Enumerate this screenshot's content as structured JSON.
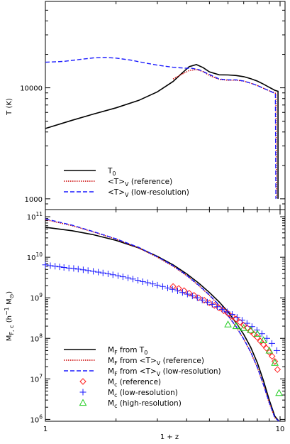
{
  "chart_data": [
    {
      "type": "line",
      "panel": "top",
      "title": "",
      "xlabel": "",
      "ylabel": "T (K)",
      "xscale": "log",
      "yscale": "log",
      "xlim": [
        1,
        10.5
      ],
      "ylim": [
        800,
        60000
      ],
      "ytick_labels": [
        "1000",
        "10000"
      ],
      "legend_placement": "bottom-left",
      "series": [
        {
          "name": "T0",
          "style": "solid",
          "color": "#000000",
          "x": [
            1.0,
            1.3,
            1.6,
            2.0,
            2.5,
            3.0,
            3.5,
            3.8,
            4.1,
            4.4,
            4.7,
            5.0,
            5.5,
            6.0,
            6.5,
            7.0,
            7.5,
            8.0,
            8.5,
            9.0,
            9.5,
            9.8,
            9.8
          ],
          "y": [
            4300,
            5100,
            5800,
            6600,
            7700,
            9200,
            11400,
            13400,
            15500,
            16200,
            15200,
            13900,
            13100,
            13050,
            12900,
            12600,
            12100,
            11500,
            10800,
            10100,
            9500,
            9300,
            1000
          ]
        },
        {
          "name": "<T>V (reference)",
          "style": "dotted",
          "color": "#cc0000",
          "x": [
            3.5,
            3.8,
            4.1,
            4.4,
            4.7,
            5.0,
            5.5,
            6.0,
            6.5,
            7.0,
            7.5,
            8.0,
            8.5,
            9.0,
            9.4,
            9.6,
            9.65
          ],
          "y": [
            12000,
            13200,
            14300,
            14600,
            14000,
            12900,
            11900,
            11700,
            11700,
            11500,
            11000,
            10500,
            9900,
            9400,
            9100,
            8900,
            1000
          ]
        },
        {
          "name": "<T>V (low-resolution)",
          "style": "dashed",
          "color": "#1a1aff",
          "x": [
            1.0,
            1.2,
            1.4,
            1.6,
            1.8,
            2.0,
            2.3,
            2.6,
            3.0,
            3.5,
            4.0,
            4.2,
            4.5,
            5.0,
            5.5,
            6.0,
            6.5,
            7.0,
            7.5,
            8.0,
            8.5,
            9.0,
            9.4,
            9.55,
            9.6
          ],
          "y": [
            17000,
            17300,
            18000,
            18600,
            18800,
            18500,
            17800,
            16900,
            16000,
            15300,
            15000,
            15000,
            14600,
            13200,
            12000,
            11800,
            11800,
            11500,
            11000,
            10500,
            9900,
            9400,
            9000,
            8900,
            1000
          ]
        }
      ]
    },
    {
      "type": "scatter",
      "panel": "bottom",
      "title": "",
      "xlabel": "1 + z",
      "ylabel": "MF, c (h−1 M⊙)",
      "xscale": "log",
      "yscale": "log",
      "xlim": [
        1,
        10.5
      ],
      "ylim": [
        900000,
        150000000000
      ],
      "xtick_labels": [
        "1",
        "10"
      ],
      "ytick_labels": [
        "10^6",
        "10^7",
        "10^8",
        "10^9",
        "10^10",
        "10^11"
      ],
      "legend_placement": "bottom-left",
      "series": [
        {
          "name": "MF from T0",
          "style": "solid",
          "color": "#000000",
          "x": [
            1.0,
            1.3,
            1.6,
            2.0,
            2.5,
            3.0,
            3.5,
            4.0,
            4.5,
            5.0,
            5.5,
            6.0,
            6.5,
            7.0,
            7.5,
            8.0,
            8.5,
            9.0,
            9.5,
            9.9
          ],
          "y": [
            55000000000,
            45000000000,
            36000000000,
            26000000000,
            17000000000,
            10500000000,
            6500000000,
            3900000000,
            2300000000,
            1350000000,
            790000000,
            450000000,
            240000000,
            125000000,
            60000000,
            25000000,
            9000000,
            3000000,
            1200000,
            900000
          ]
        },
        {
          "name": "MF from <T>V (reference)",
          "style": "dotted",
          "color": "#cc0000",
          "x": [
            1.0,
            1.3,
            1.6,
            2.0,
            2.5,
            3.0,
            3.5,
            4.0,
            4.5,
            5.0,
            5.5,
            6.0,
            6.5,
            7.0,
            7.5,
            8.0,
            8.5,
            9.0,
            9.5,
            9.9
          ],
          "y": [
            85000000000,
            60000000000,
            42000000000,
            28000000000,
            17000000000,
            10000000000,
            6000000000,
            3500000000,
            2000000000,
            1150000000,
            650000000,
            360000000,
            190000000,
            95000000,
            45000000,
            19000000,
            7000000,
            2500000,
            1100000,
            900000
          ]
        },
        {
          "name": "MF from <T>V (low-resolution)",
          "style": "dashed",
          "color": "#1a1aff",
          "x": [
            1.0,
            1.3,
            1.6,
            2.0,
            2.5,
            3.0,
            3.5,
            4.0,
            4.5,
            5.0,
            5.5,
            6.0,
            6.5,
            7.0,
            7.5,
            8.0,
            8.5,
            9.0,
            9.5,
            9.9
          ],
          "y": [
            88000000000,
            62000000000,
            43000000000,
            28500000000,
            17500000000,
            10300000000,
            6200000000,
            3600000000,
            2050000000,
            1180000000,
            660000000,
            365000000,
            195000000,
            97000000,
            46000000,
            19500000,
            7200000,
            2600000,
            1100000,
            900000
          ]
        },
        {
          "name": "Mc (reference)",
          "marker": "diamond",
          "color": "#ff2020",
          "x": [
            3.5,
            3.7,
            3.9,
            4.1,
            4.3,
            4.5,
            4.75,
            5.0,
            5.25,
            5.5,
            5.75,
            6.0,
            6.25,
            6.5,
            6.75,
            7.0,
            7.25,
            7.5,
            7.75,
            8.0,
            8.25,
            8.5,
            8.75,
            9.0,
            9.25,
            9.5,
            9.75
          ],
          "y": [
            1900000000,
            1700000000,
            1500000000,
            1300000000,
            1150000000,
            1000000000,
            870000000,
            750000000,
            650000000,
            560000000,
            480000000,
            410000000,
            350000000,
            300000000,
            250000000,
            210000000,
            180000000,
            150000000,
            125000000,
            105000000,
            85000000,
            70000000,
            57000000,
            45000000,
            36000000,
            27000000,
            17000000
          ]
        },
        {
          "name": "Mc (low-resolution)",
          "marker": "plus",
          "color": "#1a1aff",
          "x": [
            1.0,
            1.05,
            1.1,
            1.15,
            1.2,
            1.26,
            1.32,
            1.38,
            1.45,
            1.52,
            1.6,
            1.68,
            1.76,
            1.85,
            1.94,
            2.04,
            2.14,
            2.25,
            2.36,
            2.48,
            2.6,
            2.73,
            2.87,
            3.0,
            3.16,
            3.32,
            3.48,
            3.66,
            3.84,
            4.03,
            4.23,
            4.44,
            4.66,
            4.9,
            5.14,
            5.4,
            5.67,
            5.95,
            6.25,
            6.56,
            6.89,
            7.23,
            7.59,
            7.97,
            8.37,
            8.79,
            9.23,
            9.69
          ],
          "y": [
            6500000000,
            6200000000,
            6000000000,
            5800000000,
            5600000000,
            5400000000,
            5300000000,
            5100000000,
            4900000000,
            4700000000,
            4500000000,
            4300000000,
            4100000000,
            3900000000,
            3700000000,
            3500000000,
            3300000000,
            3100000000,
            2900000000,
            2700000000,
            2500000000,
            2350000000,
            2200000000,
            2050000000,
            1900000000,
            1750000000,
            1620000000,
            1480000000,
            1350000000,
            1230000000,
            1110000000,
            1000000000,
            880000000,
            780000000,
            690000000,
            600000000,
            520000000,
            450000000,
            390000000,
            330000000,
            280000000,
            235000000,
            195000000,
            160000000,
            130000000,
            100000000,
            75000000,
            50000000
          ]
        },
        {
          "name": "Mc (high-resolution)",
          "marker": "triangle",
          "color": "#22cc22",
          "x": [
            6.0,
            6.5,
            7.0,
            7.5,
            8.0,
            8.5,
            9.0,
            9.5,
            9.9
          ],
          "y": [
            220000000,
            200000000,
            180000000,
            160000000,
            130000000,
            90000000,
            50000000,
            25000000,
            4500000
          ]
        }
      ]
    }
  ],
  "legend_top": {
    "items": [
      {
        "main": "T",
        "sub": "0",
        "rest": ""
      },
      {
        "main": "<T>",
        "sub": "V",
        "rest": " (reference)"
      },
      {
        "main": "<T>",
        "sub": "V",
        "rest": " (low-resolution)"
      }
    ]
  },
  "legend_bottom": {
    "items": [
      {
        "main": "M",
        "sub": "F",
        "rest": " from T",
        "sub2": "0",
        "rest2": ""
      },
      {
        "main": "M",
        "sub": "F",
        "rest": " from <T>",
        "sub2": "V",
        "rest2": " (reference)"
      },
      {
        "main": "M",
        "sub": "F",
        "rest": " from <T>",
        "sub2": "V",
        "rest2": " (low-resolution)"
      },
      {
        "main": "M",
        "sub": "c",
        "rest": " (reference)",
        "sub2": "",
        "rest2": ""
      },
      {
        "main": "M",
        "sub": "c",
        "rest": " (low-resolution)",
        "sub2": "",
        "rest2": ""
      },
      {
        "main": "M",
        "sub": "c",
        "rest": " (high-resolution)",
        "sub2": "",
        "rest2": ""
      }
    ]
  },
  "top_ylabel": "T (K)",
  "bottom_ylabel": {
    "main": "M",
    "sub": "F, c",
    "rest_a": " (h",
    "sup": "−1",
    "rest_b": " M",
    "sun": "⊙",
    "rest_c": ")"
  },
  "xlabel": "1 + z",
  "top_yticks": [
    {
      "label": "1000",
      "value": 1000
    },
    {
      "label": "10000",
      "value": 10000
    }
  ],
  "bottom_yticks": [
    {
      "base": "10",
      "exp": "6",
      "value": 1000000
    },
    {
      "base": "10",
      "exp": "7",
      "value": 10000000
    },
    {
      "base": "10",
      "exp": "8",
      "value": 100000000
    },
    {
      "base": "10",
      "exp": "9",
      "value": 1000000000
    },
    {
      "base": "10",
      "exp": "10",
      "value": 10000000000
    },
    {
      "base": "10",
      "exp": "11",
      "value": 100000000000
    }
  ],
  "xticks": [
    {
      "label": "1",
      "value": 1
    },
    {
      "label": "10",
      "value": 10
    }
  ]
}
